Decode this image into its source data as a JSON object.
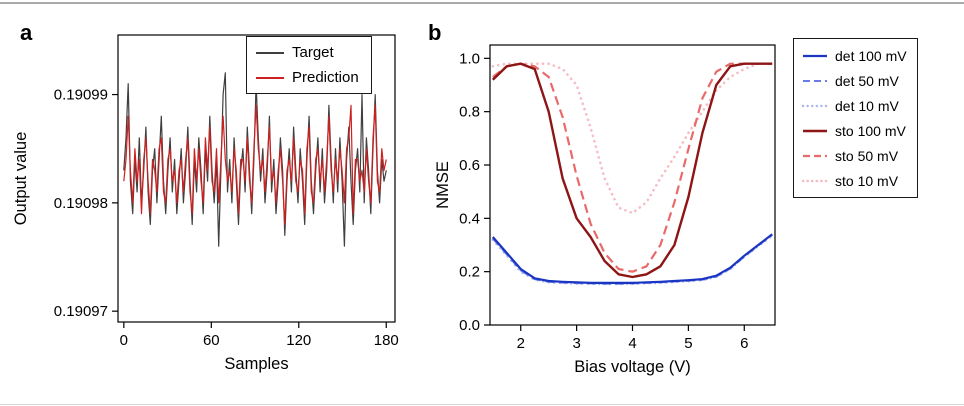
{
  "panels": {
    "a": "a",
    "b": "b"
  },
  "chart_data": [
    {
      "id": "a",
      "type": "line",
      "xlabel": "Samples",
      "ylabel": "Output value",
      "xlim": [
        -4,
        186
      ],
      "ylim": [
        0.190969,
        0.1909955
      ],
      "xticks": [
        0,
        60,
        120,
        180
      ],
      "xtick_labels": [
        "0",
        "60",
        "120",
        "180"
      ],
      "yticks": [
        0.19097,
        0.19098,
        0.19099
      ],
      "ytick_labels": [
        "0.19097",
        "0.19098",
        "0.19099"
      ],
      "x_span": [
        0,
        180
      ],
      "y_base": 0.19097,
      "y_scale": 1e-06,
      "legend_position": "inside-top-right",
      "series": [
        {
          "name": "Target",
          "color": "#3f3f3f",
          "style": "solid",
          "width": 1.2,
          "values": [
            13,
            16,
            21,
            12,
            9,
            14,
            11,
            16,
            10,
            13,
            17,
            11,
            8,
            13,
            15,
            10,
            14,
            18,
            12,
            9,
            13,
            16,
            11,
            14,
            9,
            12,
            15,
            10,
            13,
            17,
            12,
            8,
            14,
            11,
            16,
            13,
            9,
            15,
            12,
            18,
            13,
            10,
            14,
            6,
            13,
            20,
            22,
            11,
            14,
            10,
            16,
            12,
            8,
            13,
            15,
            11,
            17,
            13,
            9,
            14,
            21,
            16,
            12,
            15,
            10,
            13,
            18,
            11,
            14,
            9,
            12,
            16,
            13,
            7,
            12,
            15,
            11,
            17,
            13,
            10,
            15,
            12,
            8,
            14,
            18,
            12,
            9,
            13,
            16,
            11,
            15,
            10,
            13,
            19,
            14,
            10,
            15,
            11,
            16,
            12,
            6,
            14,
            17,
            12,
            8,
            13,
            15,
            11,
            20,
            10,
            16,
            13,
            9,
            15,
            20,
            13,
            10,
            14,
            12,
            13
          ]
        },
        {
          "name": "Prediction",
          "color": "#cf2020",
          "style": "solid",
          "width": 1.2,
          "values": [
            12,
            14,
            18,
            13,
            10,
            15,
            12,
            14,
            9,
            14,
            16,
            12,
            9,
            14,
            13,
            11,
            15,
            16,
            11,
            10,
            14,
            15,
            12,
            13,
            10,
            13,
            14,
            11,
            14,
            16,
            11,
            9,
            15,
            12,
            15,
            12,
            10,
            16,
            13,
            17,
            12,
            11,
            15,
            10,
            14,
            18,
            14,
            12,
            13,
            11,
            15,
            13,
            9,
            14,
            14,
            12,
            16,
            12,
            10,
            15,
            19,
            15,
            13,
            14,
            11,
            14,
            17,
            12,
            13,
            10,
            13,
            15,
            12,
            8,
            13,
            14,
            12,
            16,
            12,
            11,
            14,
            13,
            9,
            15,
            17,
            11,
            10,
            14,
            15,
            12,
            14,
            11,
            14,
            18,
            13,
            11,
            14,
            12,
            15,
            13,
            10,
            15,
            16,
            19,
            9,
            14,
            14,
            12,
            13,
            11,
            15,
            12,
            10,
            16,
            19,
            12,
            11,
            15,
            13,
            14
          ]
        }
      ]
    },
    {
      "id": "b",
      "type": "line",
      "xlabel": "Bias voltage (V)",
      "ylabel": "NMSE",
      "xlim": [
        1.45,
        6.55
      ],
      "ylim": [
        0,
        1.05
      ],
      "xticks": [
        2,
        3,
        4,
        5,
        6
      ],
      "xtick_labels": [
        "2",
        "3",
        "4",
        "5",
        "6"
      ],
      "yticks": [
        0,
        0.2,
        0.4,
        0.6,
        0.8,
        1.0
      ],
      "ytick_labels": [
        "0.0",
        "0.2",
        "0.4",
        "0.6",
        "0.8",
        "1.0"
      ],
      "legend_position": "outside-right",
      "x": [
        1.5,
        1.75,
        2,
        2.25,
        2.5,
        2.75,
        3,
        3.25,
        3.5,
        3.75,
        4,
        4.25,
        4.5,
        4.75,
        5,
        5.25,
        5.5,
        5.75,
        6,
        6.25,
        6.5
      ],
      "series": [
        {
          "name": "det 100 mV",
          "color": "#1a35c2",
          "style": "solid",
          "width": 2.2,
          "values": [
            0.33,
            0.27,
            0.21,
            0.175,
            0.165,
            0.162,
            0.16,
            0.158,
            0.158,
            0.158,
            0.158,
            0.16,
            0.162,
            0.165,
            0.168,
            0.172,
            0.185,
            0.215,
            0.26,
            0.3,
            0.34
          ]
        },
        {
          "name": "det 50 mV",
          "color": "#6b7ce8",
          "style": "dashed",
          "width": 2,
          "values": [
            0.325,
            0.265,
            0.205,
            0.172,
            0.162,
            0.159,
            0.157,
            0.156,
            0.155,
            0.155,
            0.156,
            0.158,
            0.16,
            0.163,
            0.166,
            0.17,
            0.182,
            0.212,
            0.257,
            0.298,
            0.338
          ]
        },
        {
          "name": "det 10 mV",
          "color": "#a9b6f0",
          "style": "dotted",
          "width": 2.4,
          "values": [
            0.32,
            0.26,
            0.2,
            0.17,
            0.16,
            0.157,
            0.155,
            0.154,
            0.153,
            0.153,
            0.154,
            0.156,
            0.158,
            0.161,
            0.164,
            0.168,
            0.18,
            0.21,
            0.255,
            0.295,
            0.335
          ]
        },
        {
          "name": "sto 100 mV",
          "color": "#8e1515",
          "style": "solid",
          "width": 2.4,
          "values": [
            0.92,
            0.97,
            0.98,
            0.96,
            0.8,
            0.55,
            0.4,
            0.33,
            0.24,
            0.19,
            0.18,
            0.19,
            0.22,
            0.3,
            0.48,
            0.72,
            0.9,
            0.97,
            0.98,
            0.98,
            0.98
          ]
        },
        {
          "name": "sto 50 mV",
          "color": "#e96a6a",
          "style": "dashed",
          "width": 2.2,
          "values": [
            0.93,
            0.97,
            0.98,
            0.97,
            0.93,
            0.78,
            0.56,
            0.38,
            0.27,
            0.21,
            0.2,
            0.22,
            0.3,
            0.46,
            0.66,
            0.85,
            0.95,
            0.98,
            0.98,
            0.98,
            0.98
          ]
        },
        {
          "name": "sto 10 mV",
          "color": "#f6bcc4",
          "style": "dotted",
          "width": 2.6,
          "values": [
            0.97,
            0.98,
            0.98,
            0.98,
            0.98,
            0.96,
            0.9,
            0.74,
            0.55,
            0.44,
            0.42,
            0.46,
            0.55,
            0.63,
            0.72,
            0.8,
            0.88,
            0.93,
            0.96,
            0.98,
            0.98
          ]
        }
      ]
    }
  ]
}
